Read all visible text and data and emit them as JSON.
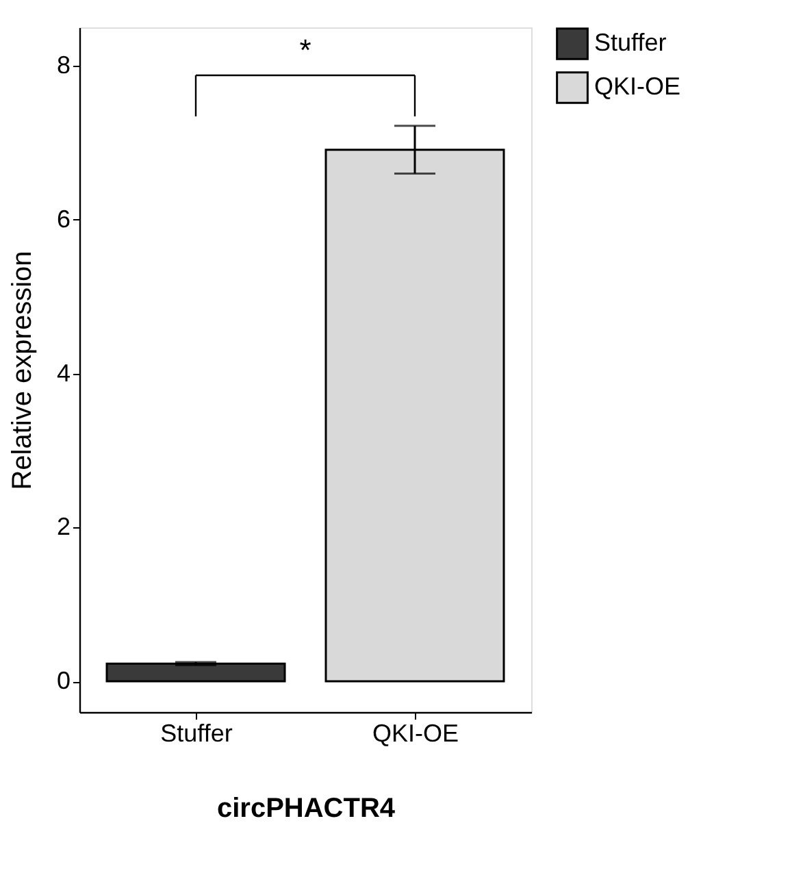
{
  "chart_data": {
    "type": "bar",
    "xlabel": "circPHACTR4",
    "ylabel": "Relative expression",
    "categories": [
      "Stuffer",
      "QKI-OE"
    ],
    "series": [
      {
        "name": "Stuffer",
        "color": "#3a3a3a",
        "values": [
          0.23,
          null
        ],
        "errors": [
          0.02,
          null
        ]
      },
      {
        "name": "QKI-OE",
        "color": "#d9d9d9",
        "values": [
          null,
          6.91
        ],
        "errors": [
          null,
          [
            6.6,
            7.22
          ]
        ]
      }
    ],
    "ylim": [
      -0.4,
      8.5
    ],
    "yticks": [
      0,
      2,
      4,
      6,
      8
    ],
    "annotations": [
      "*"
    ],
    "grid": false,
    "legend": "top right"
  }
}
